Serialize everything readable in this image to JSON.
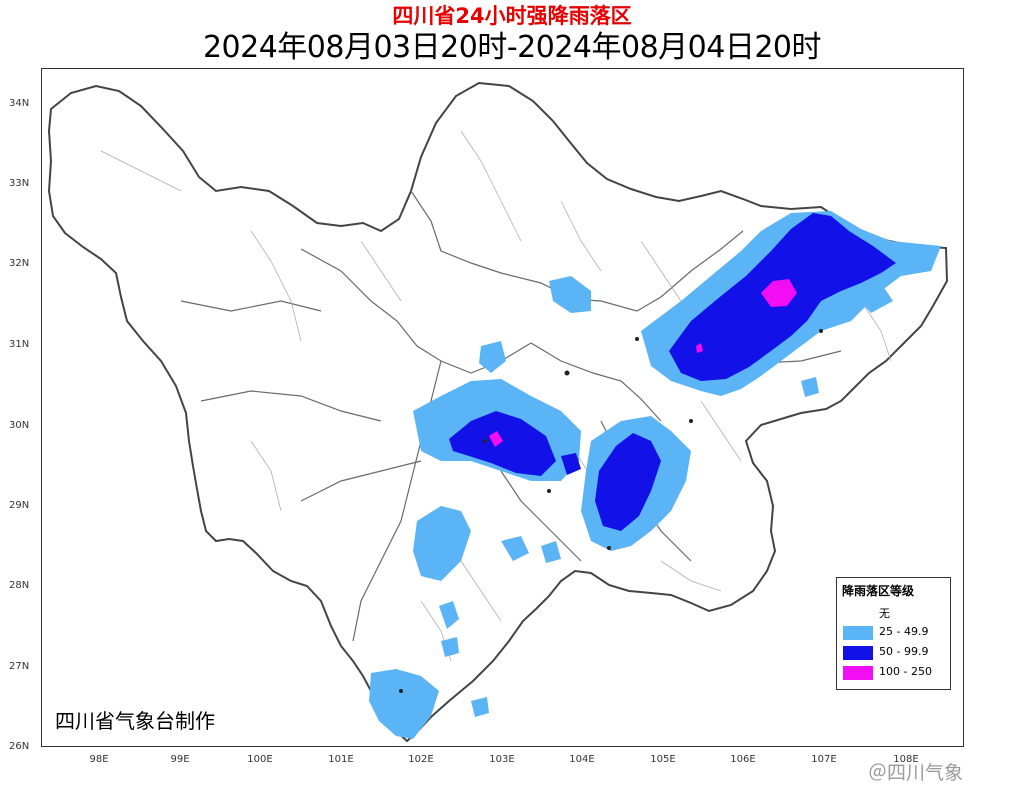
{
  "header": {
    "title": "四川省24小时强降雨落区",
    "subtitle": "2024年08月03日20时-2024年08月04日20时"
  },
  "axes": {
    "lat_labels": [
      "34N",
      "33N",
      "32N",
      "31N",
      "30N",
      "29N",
      "28N",
      "27N",
      "26N"
    ],
    "lon_labels": [
      "98E",
      "99E",
      "100E",
      "101E",
      "102E",
      "103E",
      "104E",
      "105E",
      "106E",
      "107E",
      "108E"
    ]
  },
  "credit": "四川省气象台制作",
  "legend": {
    "title": "降雨落区等级",
    "items": [
      {
        "label": "无",
        "color": "#ffffff"
      },
      {
        "label": "25 - 49.9",
        "color": "#5ab4f5"
      },
      {
        "label": "50 - 99.9",
        "color": "#1212e8"
      },
      {
        "label": "100 - 250",
        "color": "#f20df2"
      }
    ]
  },
  "watermark": "＠四川气象",
  "colors": {
    "title_red": "#e60000",
    "boundary": "#555555",
    "sub_boundary": "#9a9a9a"
  }
}
